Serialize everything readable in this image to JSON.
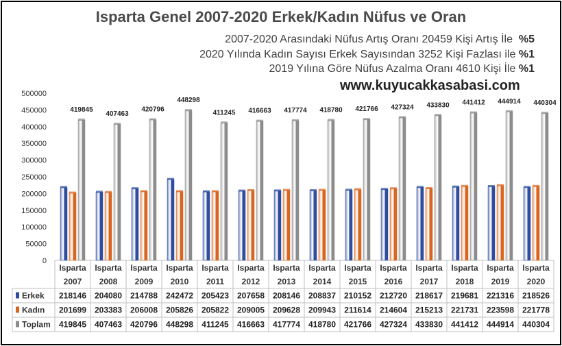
{
  "title": "Isparta Genel 2007-2020 Erkek/Kadın Nüfus ve Oran",
  "notes": [
    {
      "text": "2007-2020 Arasındaki Nüfus Artış Oranı 20459 Kişi Artış İle",
      "pct": "%5"
    },
    {
      "text": "2020 Yılında Kadın Sayısı Erkek Sayısından 3252 Kişi Fazlası ile",
      "pct": "%1"
    },
    {
      "text": "2019 Yılına Göre Nüfus Azalma Oranı 4610 Kişi İle",
      "pct": "%1"
    }
  ],
  "website": "www.kuyucakkasabasi.com",
  "chart_data": {
    "type": "bar",
    "category_prefix": "Isparta",
    "categories": [
      "2007",
      "2008",
      "2009",
      "2010",
      "2011",
      "2012",
      "2013",
      "2014",
      "2015",
      "2016",
      "2017",
      "2018",
      "2019",
      "2020"
    ],
    "series": [
      {
        "name": "Erkek",
        "color": "#2e4d9e",
        "values": [
          218146,
          204080,
          214788,
          242472,
          205423,
          207658,
          208146,
          208837,
          210152,
          212720,
          218617,
          219681,
          221316,
          218526
        ]
      },
      {
        "name": "Kadın",
        "color": "#d9661f",
        "values": [
          201699,
          203383,
          206008,
          205826,
          205822,
          209005,
          209628,
          209943,
          211614,
          214604,
          215213,
          221731,
          223598,
          221778
        ]
      },
      {
        "name": "Toplam",
        "color": "#8c8c8c",
        "values": [
          419845,
          407463,
          420796,
          448298,
          411245,
          416663,
          417774,
          418780,
          421766,
          427324,
          433830,
          441412,
          444914,
          440304
        ]
      }
    ],
    "data_labels_series": "Toplam",
    "ylim": [
      0,
      500000
    ],
    "y_ticks": [
      0,
      50000,
      100000,
      150000,
      200000,
      250000,
      300000,
      350000,
      400000,
      450000,
      500000
    ],
    "grid": false,
    "legend": "data-table",
    "data_table": true
  }
}
